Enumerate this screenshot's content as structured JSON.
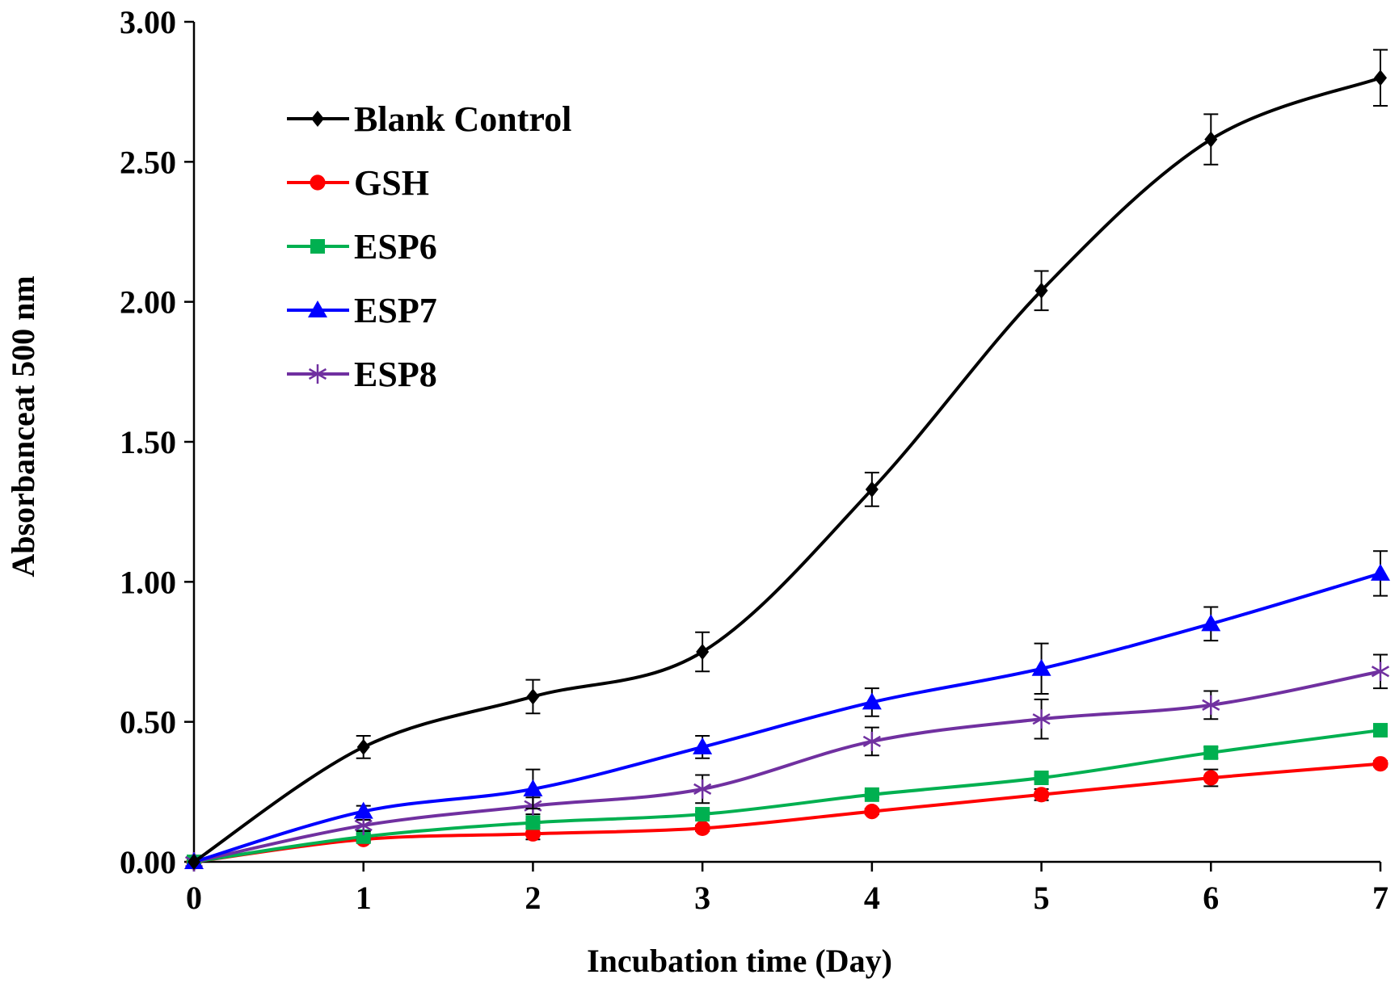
{
  "chart_data": {
    "type": "line",
    "title": "",
    "xlabel": "Incubation time (Day)",
    "ylabel": "Absorbanceat  500 nm",
    "x": [
      0,
      1,
      2,
      3,
      4,
      5,
      6,
      7
    ],
    "xticks": [
      "0",
      "1",
      "2",
      "3",
      "4",
      "5",
      "6",
      "7"
    ],
    "yticks": [
      "0.00",
      "0.50",
      "1.00",
      "1.50",
      "2.00",
      "2.50",
      "3.00"
    ],
    "ylim": [
      0,
      3.0
    ],
    "xlim": [
      0,
      7
    ],
    "grid": false,
    "legend_position": "top-left",
    "series": [
      {
        "name": "Blank Control",
        "color": "#000000",
        "marker": "diamond",
        "values": [
          0.0,
          0.41,
          0.59,
          0.75,
          1.33,
          2.04,
          2.58,
          2.8
        ],
        "errors": [
          0.0,
          0.04,
          0.06,
          0.07,
          0.06,
          0.07,
          0.09,
          0.1
        ]
      },
      {
        "name": "GSH",
        "color": "#ff0000",
        "marker": "circle",
        "values": [
          0.0,
          0.08,
          0.1,
          0.12,
          0.18,
          0.24,
          0.3,
          0.35
        ],
        "errors": [
          0.0,
          0.01,
          0.02,
          0.01,
          0.01,
          0.02,
          0.03,
          0.01
        ]
      },
      {
        "name": "ESP6",
        "color": "#00b050",
        "marker": "square",
        "values": [
          0.0,
          0.09,
          0.14,
          0.17,
          0.24,
          0.3,
          0.39,
          0.47
        ],
        "errors": [
          0.0,
          0.01,
          0.01,
          0.01,
          0.01,
          0.01,
          0.02,
          0.01
        ]
      },
      {
        "name": "ESP7",
        "color": "#0000ff",
        "marker": "triangle",
        "values": [
          0.0,
          0.18,
          0.26,
          0.41,
          0.57,
          0.69,
          0.85,
          1.03
        ],
        "errors": [
          0.0,
          0.02,
          0.07,
          0.04,
          0.05,
          0.09,
          0.06,
          0.08
        ]
      },
      {
        "name": "ESP8",
        "color": "#7030a0",
        "marker": "star",
        "values": [
          0.0,
          0.13,
          0.2,
          0.26,
          0.43,
          0.51,
          0.56,
          0.68
        ],
        "errors": [
          0.0,
          0.02,
          0.03,
          0.05,
          0.05,
          0.07,
          0.05,
          0.06
        ]
      }
    ]
  }
}
